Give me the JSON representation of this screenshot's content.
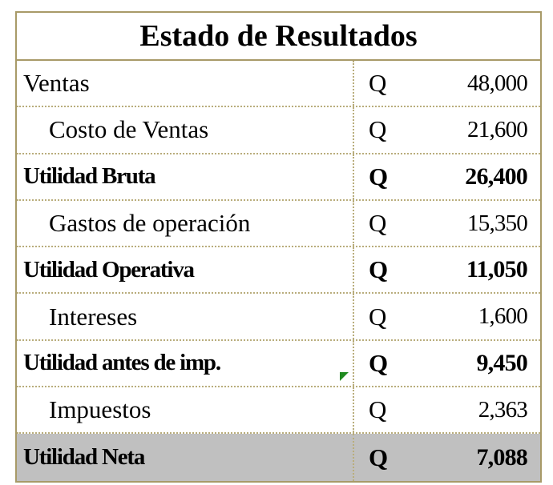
{
  "title": "Estado de Resultados",
  "rows": [
    {
      "label": "Ventas",
      "currency": "Q",
      "value": "48,000"
    },
    {
      "label": "Costo de Ventas",
      "currency": "Q",
      "value": "21,600"
    },
    {
      "label": "Utilidad Bruta",
      "currency": "Q",
      "value": "26,400"
    },
    {
      "label": "Gastos de operación",
      "currency": "Q",
      "value": "15,350"
    },
    {
      "label": "Utilidad Operativa",
      "currency": "Q",
      "value": "11,050"
    },
    {
      "label": "Intereses",
      "currency": "Q",
      "value": "1,600"
    },
    {
      "label": "Utilidad antes de imp.",
      "currency": "Q",
      "value": "9,450"
    },
    {
      "label": "Impuestos",
      "currency": "Q",
      "value": "2,363"
    },
    {
      "label": "Utilidad Neta",
      "currency": "Q",
      "value": "7,088"
    }
  ],
  "colors": {
    "border": "#a89a68",
    "total_bg": "#c0c0c0",
    "comment_marker": "#1f8a1f"
  }
}
